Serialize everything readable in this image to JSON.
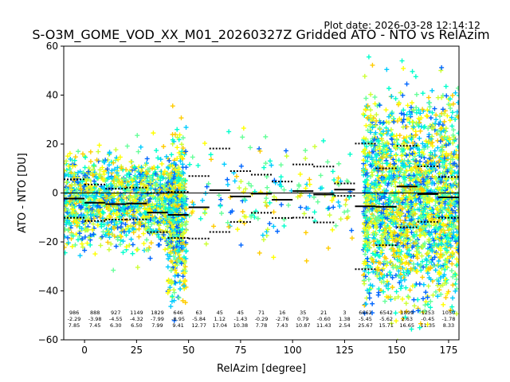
{
  "chart_data": {
    "type": "scatter",
    "plot_date": "Plot date: 2026-03-28 12:14:12",
    "title": "S-O3M_GOME_VOD_XX_M01_20260327Z Gridded ATO - NTO vs RelAzim",
    "xlabel": "RelAzim [degree]",
    "ylabel": "ATO - NTO [DU]",
    "xlim": [
      -10,
      180
    ],
    "ylim": [
      -60,
      60
    ],
    "xticks": [
      0,
      25,
      50,
      75,
      100,
      125,
      150,
      175
    ],
    "yticks": [
      -60,
      -40,
      -20,
      0,
      20,
      40,
      60
    ],
    "grid": false,
    "zero_line": 0,
    "colors": {
      "points": [
        "#00ffcc",
        "#66ff99",
        "#ccff33",
        "#ffff00",
        "#ffcc00",
        "#00ccff",
        "#0066ff"
      ],
      "bin_mean": "#000000",
      "bin_std": "#000000",
      "zero_line": "#000000"
    },
    "bins": [
      {
        "x": -5,
        "n": "986",
        "mean": "-2.29",
        "std": "7.85"
      },
      {
        "x": 5,
        "n": "888",
        "mean": "-3.98",
        "std": "7.45"
      },
      {
        "x": 15,
        "n": "927",
        "mean": "-4.55",
        "std": "6.30"
      },
      {
        "x": 25,
        "n": "1149",
        "mean": "-4.32",
        "std": "6.50"
      },
      {
        "x": 35,
        "n": "1829",
        "mean": "-7.99",
        "std": "7.99"
      },
      {
        "x": 45,
        "n": "646",
        "mean": "-8.95",
        "std": "9.41"
      },
      {
        "x": 55,
        "n": "63",
        "mean": "-5.84",
        "std": "12.77"
      },
      {
        "x": 65,
        "n": "45",
        "mean": "1.12",
        "std": "17.04"
      },
      {
        "x": 75,
        "n": "45",
        "mean": "-1.43",
        "std": "10.38"
      },
      {
        "x": 85,
        "n": "71",
        "mean": "-0.29",
        "std": "7.78"
      },
      {
        "x": 95,
        "n": "16",
        "mean": "-2.76",
        "std": "7.43"
      },
      {
        "x": 105,
        "n": "35",
        "mean": "0.79",
        "std": "10.87"
      },
      {
        "x": 115,
        "n": "21",
        "mean": "-0.60",
        "std": "11.43"
      },
      {
        "x": 125,
        "n": "3",
        "mean": "1.38",
        "std": "2.54"
      },
      {
        "x": 135,
        "n": "6662",
        "mean": "-5.45",
        "std": "25.67"
      },
      {
        "x": 145,
        "n": "6542",
        "mean": "-5.62",
        "std": "15.71"
      },
      {
        "x": 155,
        "n": "1899",
        "mean": "2.63",
        "std": "16.65"
      },
      {
        "x": 165,
        "n": "1253",
        "mean": "-0.45",
        "std": "11.35"
      },
      {
        "x": 175,
        "n": "1050",
        "mean": "-1.78",
        "std": "8.33"
      }
    ],
    "point_clusters": [
      {
        "x": [
          -10,
          48
        ],
        "y_mean": -3,
        "y_spread": 9,
        "count": 1400
      },
      {
        "x": [
          40,
          49
        ],
        "y_mean": -10,
        "y_spread": 16,
        "count": 400
      },
      {
        "x": [
          48,
          130
        ],
        "y_mean": -1,
        "y_spread": 11,
        "count": 180
      },
      {
        "x": [
          134,
          180
        ],
        "y_mean": -3,
        "y_spread": 20,
        "count": 2200
      }
    ]
  }
}
